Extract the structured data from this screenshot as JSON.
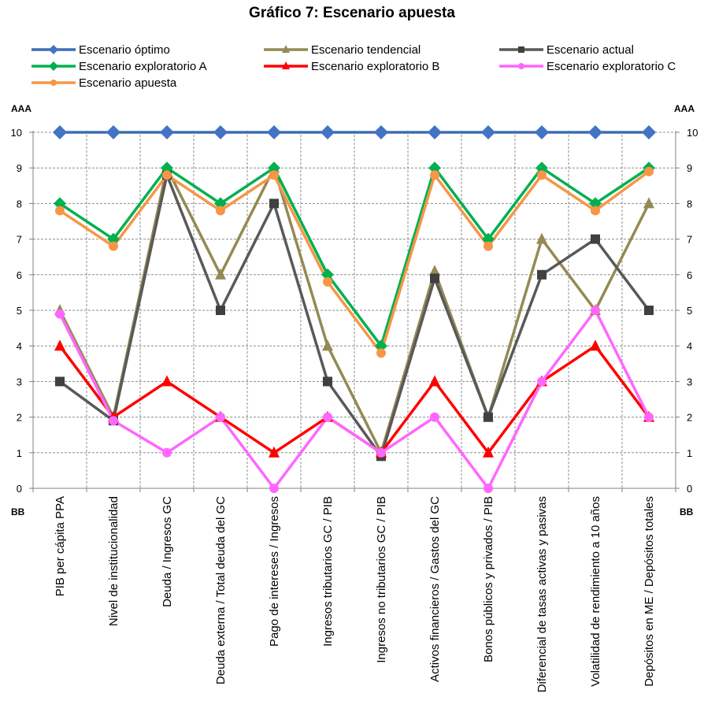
{
  "chart_data": {
    "type": "line",
    "title": "Gráfico 7: Escenario apuesta",
    "left_top_label": "AAA",
    "left_bottom_label": "BB",
    "right_top_label": "AAA",
    "right_bottom_label": "BB",
    "ylim": [
      0,
      10
    ],
    "yticks": [
      "0",
      "1",
      "2",
      "3",
      "4",
      "5",
      "6",
      "7",
      "8",
      "9",
      "10"
    ],
    "grid": true,
    "legend_position": "top",
    "categories": [
      "PIB per cápita PPA",
      "Nivel de institucionalidad",
      "Deuda / Ingresos GC",
      "Deuda externa / Total deuda del GC",
      "Pago de intereses / Ingresos",
      "Ingresos tributarios GC / PIB",
      "Ingresos no tributarios GC / PIB",
      "Activos financieros / Gastos del GC",
      "Bonos públicos y privados / PIB",
      "Diferencial de tasas activas y pasivas",
      "Volatilidad de rendimiento a 10 años",
      "Depósitos en ME / Depósitos totales"
    ],
    "series": [
      {
        "name": "Escenario óptimo",
        "color": "#4472C4",
        "line": "#3D6DB5",
        "marker": "diamond",
        "values": [
          10,
          10,
          10,
          10,
          10,
          10,
          10,
          10,
          10,
          10,
          10,
          10
        ]
      },
      {
        "name": "Escenario tendencial",
        "color": "#948A54",
        "line": "#948A54",
        "marker": "triangle",
        "values": [
          5,
          2,
          9,
          6,
          9,
          4,
          1,
          6.1,
          2,
          7,
          5,
          8
        ]
      },
      {
        "name": "Escenario actual",
        "color": "#404040",
        "line": "#595959",
        "marker": "square",
        "values": [
          3,
          1.9,
          8.8,
          5,
          8,
          3,
          0.9,
          5.9,
          2,
          6,
          7,
          5
        ]
      },
      {
        "name": "Escenario exploratorio B",
        "color": "#FF0000",
        "line": "#FF0000",
        "marker": "triangle",
        "values": [
          4,
          2,
          3,
          2,
          1,
          2,
          1,
          3,
          1,
          3,
          4,
          2
        ]
      },
      {
        "name": "Escenario exploratorio C",
        "color": "#FF66FF",
        "line": "#FF66FF",
        "marker": "circle",
        "values": [
          4.9,
          1.9,
          1,
          2,
          0,
          2,
          1,
          2,
          0,
          3,
          5,
          2
        ]
      },
      {
        "name": "Escenario exploratorio A",
        "color": "#00B050",
        "line": "#00B050",
        "marker": "diamond",
        "values": [
          8,
          7,
          9,
          8,
          9,
          6,
          4,
          9,
          7,
          9,
          8,
          9
        ]
      },
      {
        "name": "Escenario apuesta",
        "color": "#F79646",
        "line": "#F79646",
        "marker": "circle",
        "values": [
          7.8,
          6.8,
          8.8,
          7.8,
          8.8,
          5.8,
          3.8,
          8.8,
          6.8,
          8.8,
          7.8,
          8.9
        ]
      }
    ],
    "legend_order": [
      "Escenario óptimo",
      "Escenario tendencial",
      "Escenario actual",
      "Escenario exploratorio A",
      "Escenario exploratorio B",
      "Escenario exploratorio C",
      "Escenario apuesta"
    ]
  }
}
